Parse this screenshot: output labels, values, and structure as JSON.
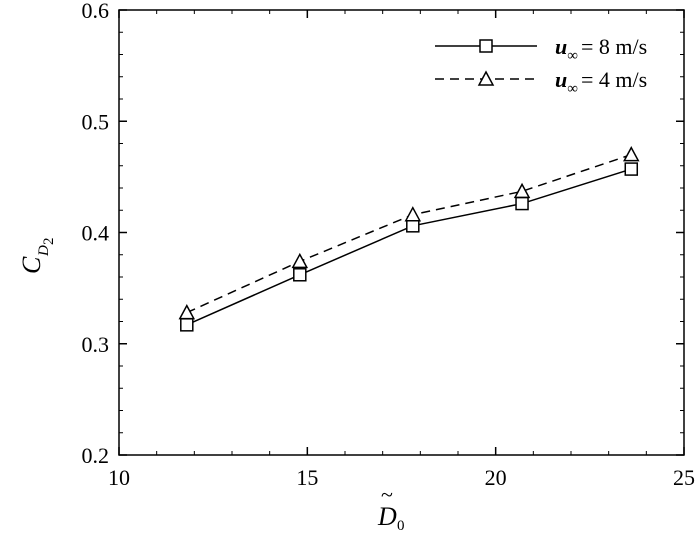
{
  "chart_data": {
    "type": "line",
    "xlabel": "D",
    "xlabel_accent": "~",
    "xlabel_subscript": "0",
    "ylabel": "C",
    "ylabel_subscript": "D",
    "ylabel_subsubscript": "2",
    "xlim": [
      10,
      25
    ],
    "ylim": [
      0.2,
      0.6
    ],
    "xticks": [
      "10",
      "15",
      "20",
      "25"
    ],
    "yticks": [
      "0.2",
      "0.3",
      "0.4",
      "0.5",
      "0.6"
    ],
    "grid": false,
    "legend_position": "top-right",
    "series": [
      {
        "legend_var": "u",
        "legend_sub": "∞",
        "legend_value": "= 8 m/s",
        "line_style": "solid",
        "marker": "square",
        "x": [
          11.8,
          14.8,
          17.8,
          20.7,
          23.6
        ],
        "y": [
          0.317,
          0.362,
          0.406,
          0.426,
          0.457
        ]
      },
      {
        "legend_var": "u",
        "legend_sub": "∞",
        "legend_value": "= 4 m/s",
        "line_style": "dashed",
        "marker": "triangle",
        "x": [
          11.8,
          14.8,
          17.8,
          20.7,
          23.6
        ],
        "y": [
          0.328,
          0.374,
          0.416,
          0.437,
          0.47
        ]
      }
    ]
  }
}
